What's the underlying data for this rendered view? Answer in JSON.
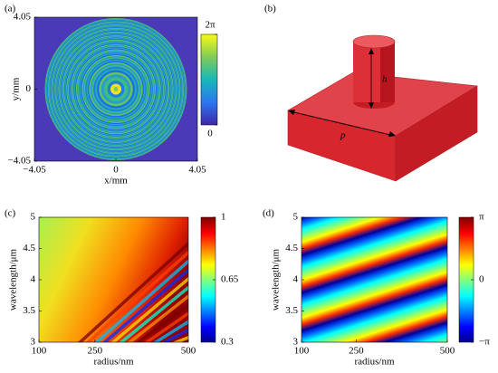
{
  "chart_data": [
    {
      "type": "heatmap",
      "label": "(a)",
      "xlabel": "x/mm",
      "ylabel": "y/mm",
      "colormap": "parula",
      "xlim": [
        -4.05,
        4.05
      ],
      "ylim": [
        -4.05,
        4.05
      ],
      "xticks": [
        {
          "value": -4.05,
          "label": "−4.05"
        },
        0,
        4.05
      ],
      "yticks": [
        {
          "value": -4.05,
          "label": "−4.05"
        },
        0,
        4.05
      ],
      "colorbar": {
        "lim": [
          0,
          6.28319
        ],
        "ticks": [
          0,
          {
            "value": 6.28319,
            "label": "2π"
          }
        ]
      }
    },
    {
      "type": "diagram",
      "label": "(b)",
      "annotations": [
        "h",
        "p"
      ]
    },
    {
      "type": "heatmap",
      "label": "(c)",
      "xlabel": "radius/nm",
      "ylabel": "wavelength/μm",
      "colormap": "jet",
      "xlim": [
        100,
        500
      ],
      "ylim": [
        3,
        5
      ],
      "xticks": [
        100,
        250,
        500
      ],
      "yticks": [
        3,
        3.5,
        4,
        4.5,
        5
      ],
      "colorbar": {
        "lim": [
          0.3,
          1
        ],
        "ticks": [
          0.3,
          0.65,
          1
        ]
      }
    },
    {
      "type": "heatmap",
      "label": "(d)",
      "xlabel": "radius/nm",
      "ylabel": "wavelength/μm",
      "colormap": "phase",
      "xlim": [
        100,
        500
      ],
      "ylim": [
        3,
        5
      ],
      "xticks": [
        100,
        250,
        500
      ],
      "yticks": [
        3,
        3.5,
        4,
        4.5,
        5
      ],
      "colorbar": {
        "lim": [
          -3.14159,
          3.14159
        ],
        "ticks": [
          {
            "value": -3.14159,
            "label": "−π"
          },
          0,
          {
            "value": 3.14159,
            "label": "π"
          }
        ]
      }
    }
  ]
}
